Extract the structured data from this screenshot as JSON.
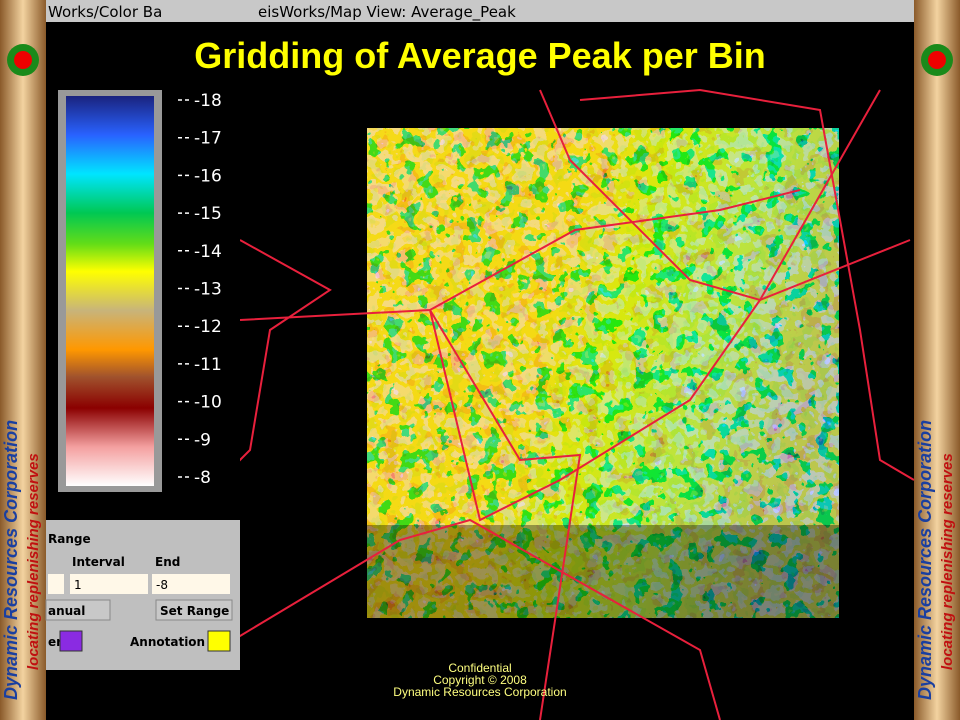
{
  "title": "Gridding of Average Peak per Bin",
  "windows": {
    "color_bar_title": "Works/Color Ba",
    "map_title": "eisWorks/Map View: Average_Peak"
  },
  "colorbar": {
    "labels": [
      "-18",
      "-17",
      "-16",
      "-15",
      "-14",
      "-13",
      "-12",
      "-11",
      "-10",
      "-9",
      "-8"
    ]
  },
  "range_panel": {
    "heading": "Range",
    "interval_label": "Interval",
    "end_label": "End",
    "interval_value": "1",
    "end_value": "-8",
    "mode_button": "anual",
    "set_range_button": "Set Range",
    "border_label": "er",
    "annotation_label": "Annotation"
  },
  "footer": {
    "line1": "Confidential",
    "line2": "Copyright © 2008",
    "line3": "Dynamic Resources Corporation"
  },
  "banner": {
    "company": "Dynamic Resources Corporation",
    "tagline": "locating replenishing reserves"
  }
}
